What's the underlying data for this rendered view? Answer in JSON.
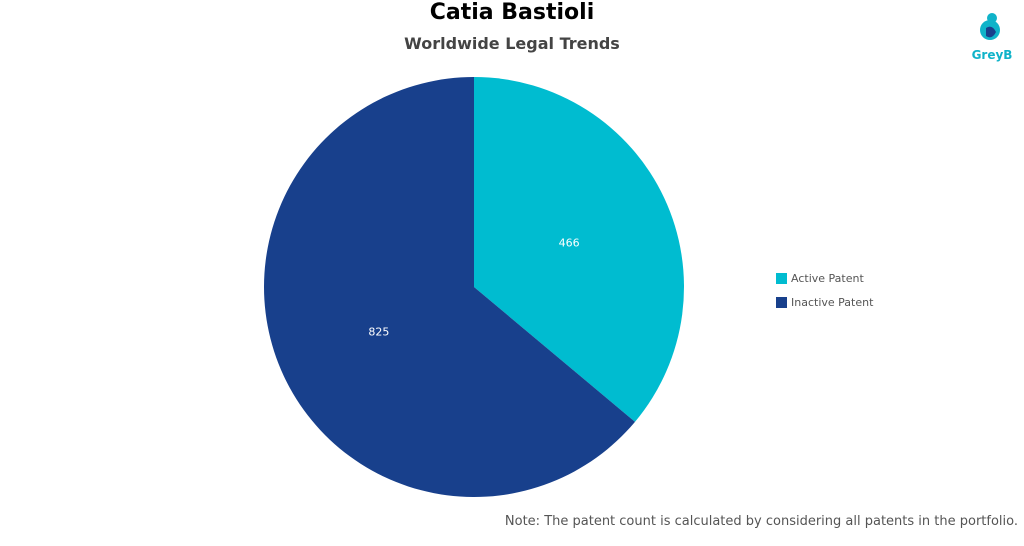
{
  "chart_data": {
    "type": "pie",
    "title": "Catia Bastioli",
    "subtitle": "Worldwide Legal Trends",
    "categories": [
      "Active Patent",
      "Inactive Patent"
    ],
    "values": [
      466,
      825
    ],
    "colors": [
      "#00BCD0",
      "#18408C"
    ],
    "legend_position": "right"
  },
  "brand": {
    "logo_text": "GreyB",
    "logo_color": "#0FB3C9"
  },
  "note": "Note: The patent count is calculated by considering all patents in the portfolio."
}
